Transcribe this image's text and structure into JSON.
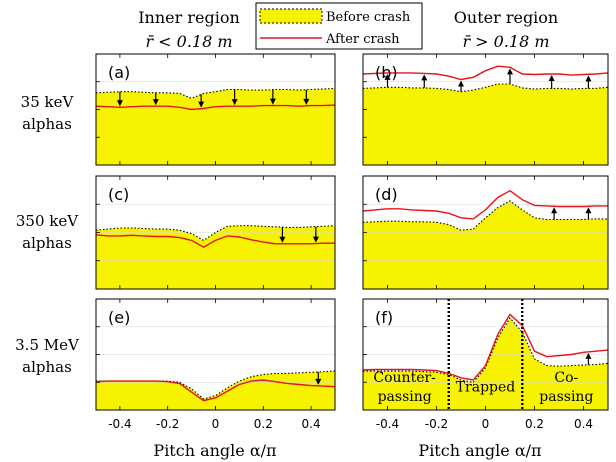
{
  "chart_data": {
    "type": "area",
    "column_titles": [
      {
        "title": "Inner region",
        "condition": "r̄ < 0.18 m"
      },
      {
        "title": "Outer region",
        "condition": "r̄ > 0.18 m"
      }
    ],
    "row_labels": [
      {
        "energy": "35 keV",
        "species": "alphas"
      },
      {
        "energy": "350 keV",
        "species": "alphas"
      },
      {
        "energy": "3.5 MeV",
        "species": "alphas"
      }
    ],
    "legend": {
      "placement": "top-center",
      "before": "Before crash",
      "after": "After crash"
    },
    "xlabel": "Pitch angle α/π",
    "xlim": [
      -0.5,
      0.5
    ],
    "xticks": [
      "-0.4",
      "-0.2",
      "0",
      "0.2",
      "0.4"
    ],
    "ylim": [
      0,
      10
    ],
    "colors": {
      "before_fill": "#f7f300",
      "after_line": "#e5131a",
      "before_line": "#000000",
      "arrow": "#000000",
      "divider": "#000000"
    },
    "x": [
      -0.5,
      -0.45,
      -0.4,
      -0.35,
      -0.3,
      -0.25,
      -0.2,
      -0.15,
      -0.1,
      -0.05,
      0,
      0.05,
      0.1,
      0.15,
      0.2,
      0.25,
      0.3,
      0.35,
      0.4,
      0.45,
      0.5
    ],
    "panels": [
      {
        "label": "(a)",
        "before": [
          6.5,
          6.55,
          6.6,
          6.6,
          6.55,
          6.5,
          6.5,
          6.45,
          6.0,
          6.45,
          6.6,
          6.8,
          6.8,
          6.75,
          6.75,
          6.8,
          6.8,
          6.75,
          6.8,
          6.85,
          6.9
        ],
        "after": [
          5.3,
          5.25,
          5.2,
          5.25,
          5.3,
          5.3,
          5.3,
          5.2,
          5.0,
          5.1,
          5.25,
          5.3,
          5.3,
          5.3,
          5.35,
          5.35,
          5.35,
          5.3,
          5.35,
          5.35,
          5.4
        ],
        "arrows": [
          {
            "x": -0.4,
            "dir": "down"
          },
          {
            "x": -0.25,
            "dir": "down"
          },
          {
            "x": -0.06,
            "dir": "down"
          },
          {
            "x": 0.08,
            "dir": "down"
          },
          {
            "x": 0.24,
            "dir": "down"
          },
          {
            "x": 0.38,
            "dir": "down"
          }
        ]
      },
      {
        "label": "(b)",
        "before": [
          6.9,
          6.95,
          7.0,
          7.0,
          6.95,
          6.95,
          6.9,
          6.8,
          6.6,
          6.75,
          7.0,
          7.3,
          7.3,
          6.95,
          6.85,
          6.9,
          6.9,
          6.85,
          6.9,
          6.9,
          7.0
        ],
        "after": [
          8.2,
          8.25,
          8.3,
          8.3,
          8.3,
          8.25,
          8.2,
          8.0,
          7.7,
          7.9,
          8.5,
          8.9,
          8.8,
          8.2,
          8.15,
          8.2,
          8.2,
          8.1,
          8.15,
          8.2,
          8.3
        ],
        "arrows": [
          {
            "x": -0.4,
            "dir": "up"
          },
          {
            "x": -0.25,
            "dir": "up"
          },
          {
            "x": -0.1,
            "dir": "up"
          },
          {
            "x": 0.1,
            "dir": "up"
          },
          {
            "x": 0.27,
            "dir": "up"
          },
          {
            "x": 0.42,
            "dir": "up"
          }
        ]
      },
      {
        "label": "(c)",
        "before": [
          5.2,
          5.3,
          5.4,
          5.4,
          5.35,
          5.3,
          5.3,
          5.2,
          4.9,
          4.3,
          5.0,
          5.55,
          5.6,
          5.6,
          5.55,
          5.5,
          5.45,
          5.45,
          5.5,
          5.55,
          5.6
        ],
        "after": [
          4.8,
          4.7,
          4.7,
          4.75,
          4.7,
          4.65,
          4.65,
          4.55,
          4.3,
          3.7,
          4.3,
          4.7,
          4.6,
          4.35,
          4.15,
          4.0,
          4.0,
          4.0,
          4.0,
          4.05,
          4.05
        ],
        "arrows": [
          {
            "x": 0.28,
            "dir": "down"
          },
          {
            "x": 0.42,
            "dir": "down"
          }
        ]
      },
      {
        "label": "(d)",
        "before": [
          5.9,
          5.95,
          6.0,
          6.0,
          5.95,
          5.95,
          5.9,
          5.7,
          5.2,
          5.3,
          6.3,
          7.2,
          7.8,
          7.0,
          6.3,
          6.15,
          6.15,
          6.15,
          6.15,
          6.2,
          6.2
        ],
        "after": [
          6.9,
          7.0,
          7.1,
          7.1,
          7.0,
          6.95,
          6.9,
          6.7,
          6.3,
          6.2,
          7.0,
          8.1,
          8.7,
          7.9,
          7.4,
          7.35,
          7.3,
          7.3,
          7.3,
          7.35,
          7.35
        ],
        "arrows": [
          {
            "x": 0.28,
            "dir": "up"
          },
          {
            "x": 0.42,
            "dir": "up"
          }
        ]
      },
      {
        "label": "(e)",
        "before": [
          2.6,
          2.6,
          2.6,
          2.6,
          2.6,
          2.6,
          2.6,
          2.5,
          1.9,
          1.0,
          1.3,
          2.0,
          2.6,
          3.0,
          3.2,
          3.3,
          3.3,
          3.35,
          3.4,
          3.45,
          3.5
        ],
        "after": [
          2.55,
          2.6,
          2.6,
          2.6,
          2.6,
          2.6,
          2.55,
          2.4,
          1.6,
          0.85,
          1.1,
          1.7,
          2.3,
          2.6,
          2.7,
          2.55,
          2.4,
          2.3,
          2.2,
          2.15,
          2.1
        ],
        "arrows": [
          {
            "x": 0.43,
            "dir": "down"
          }
        ]
      },
      {
        "label": "(f)",
        "before": [
          3.5,
          3.5,
          3.5,
          3.5,
          3.5,
          3.45,
          3.4,
          3.2,
          2.7,
          2.5,
          3.8,
          6.5,
          8.3,
          7.0,
          4.6,
          4.0,
          3.95,
          4.0,
          4.05,
          4.1,
          4.2
        ],
        "after": [
          3.6,
          3.65,
          3.65,
          3.65,
          3.65,
          3.6,
          3.55,
          3.3,
          2.9,
          2.7,
          4.0,
          6.8,
          8.6,
          7.6,
          5.3,
          4.8,
          4.9,
          5.0,
          5.2,
          5.3,
          5.4
        ],
        "arrows": [
          {
            "x": 0.42,
            "dir": "up"
          }
        ],
        "dividers": [
          -0.15,
          0.15
        ],
        "regions": [
          {
            "x": -0.33,
            "lines": [
              "Counter-",
              "passing"
            ]
          },
          {
            "x": 0.0,
            "lines": [
              "Trapped"
            ]
          },
          {
            "x": 0.33,
            "lines": [
              "Co-",
              "passing"
            ]
          }
        ]
      }
    ]
  }
}
